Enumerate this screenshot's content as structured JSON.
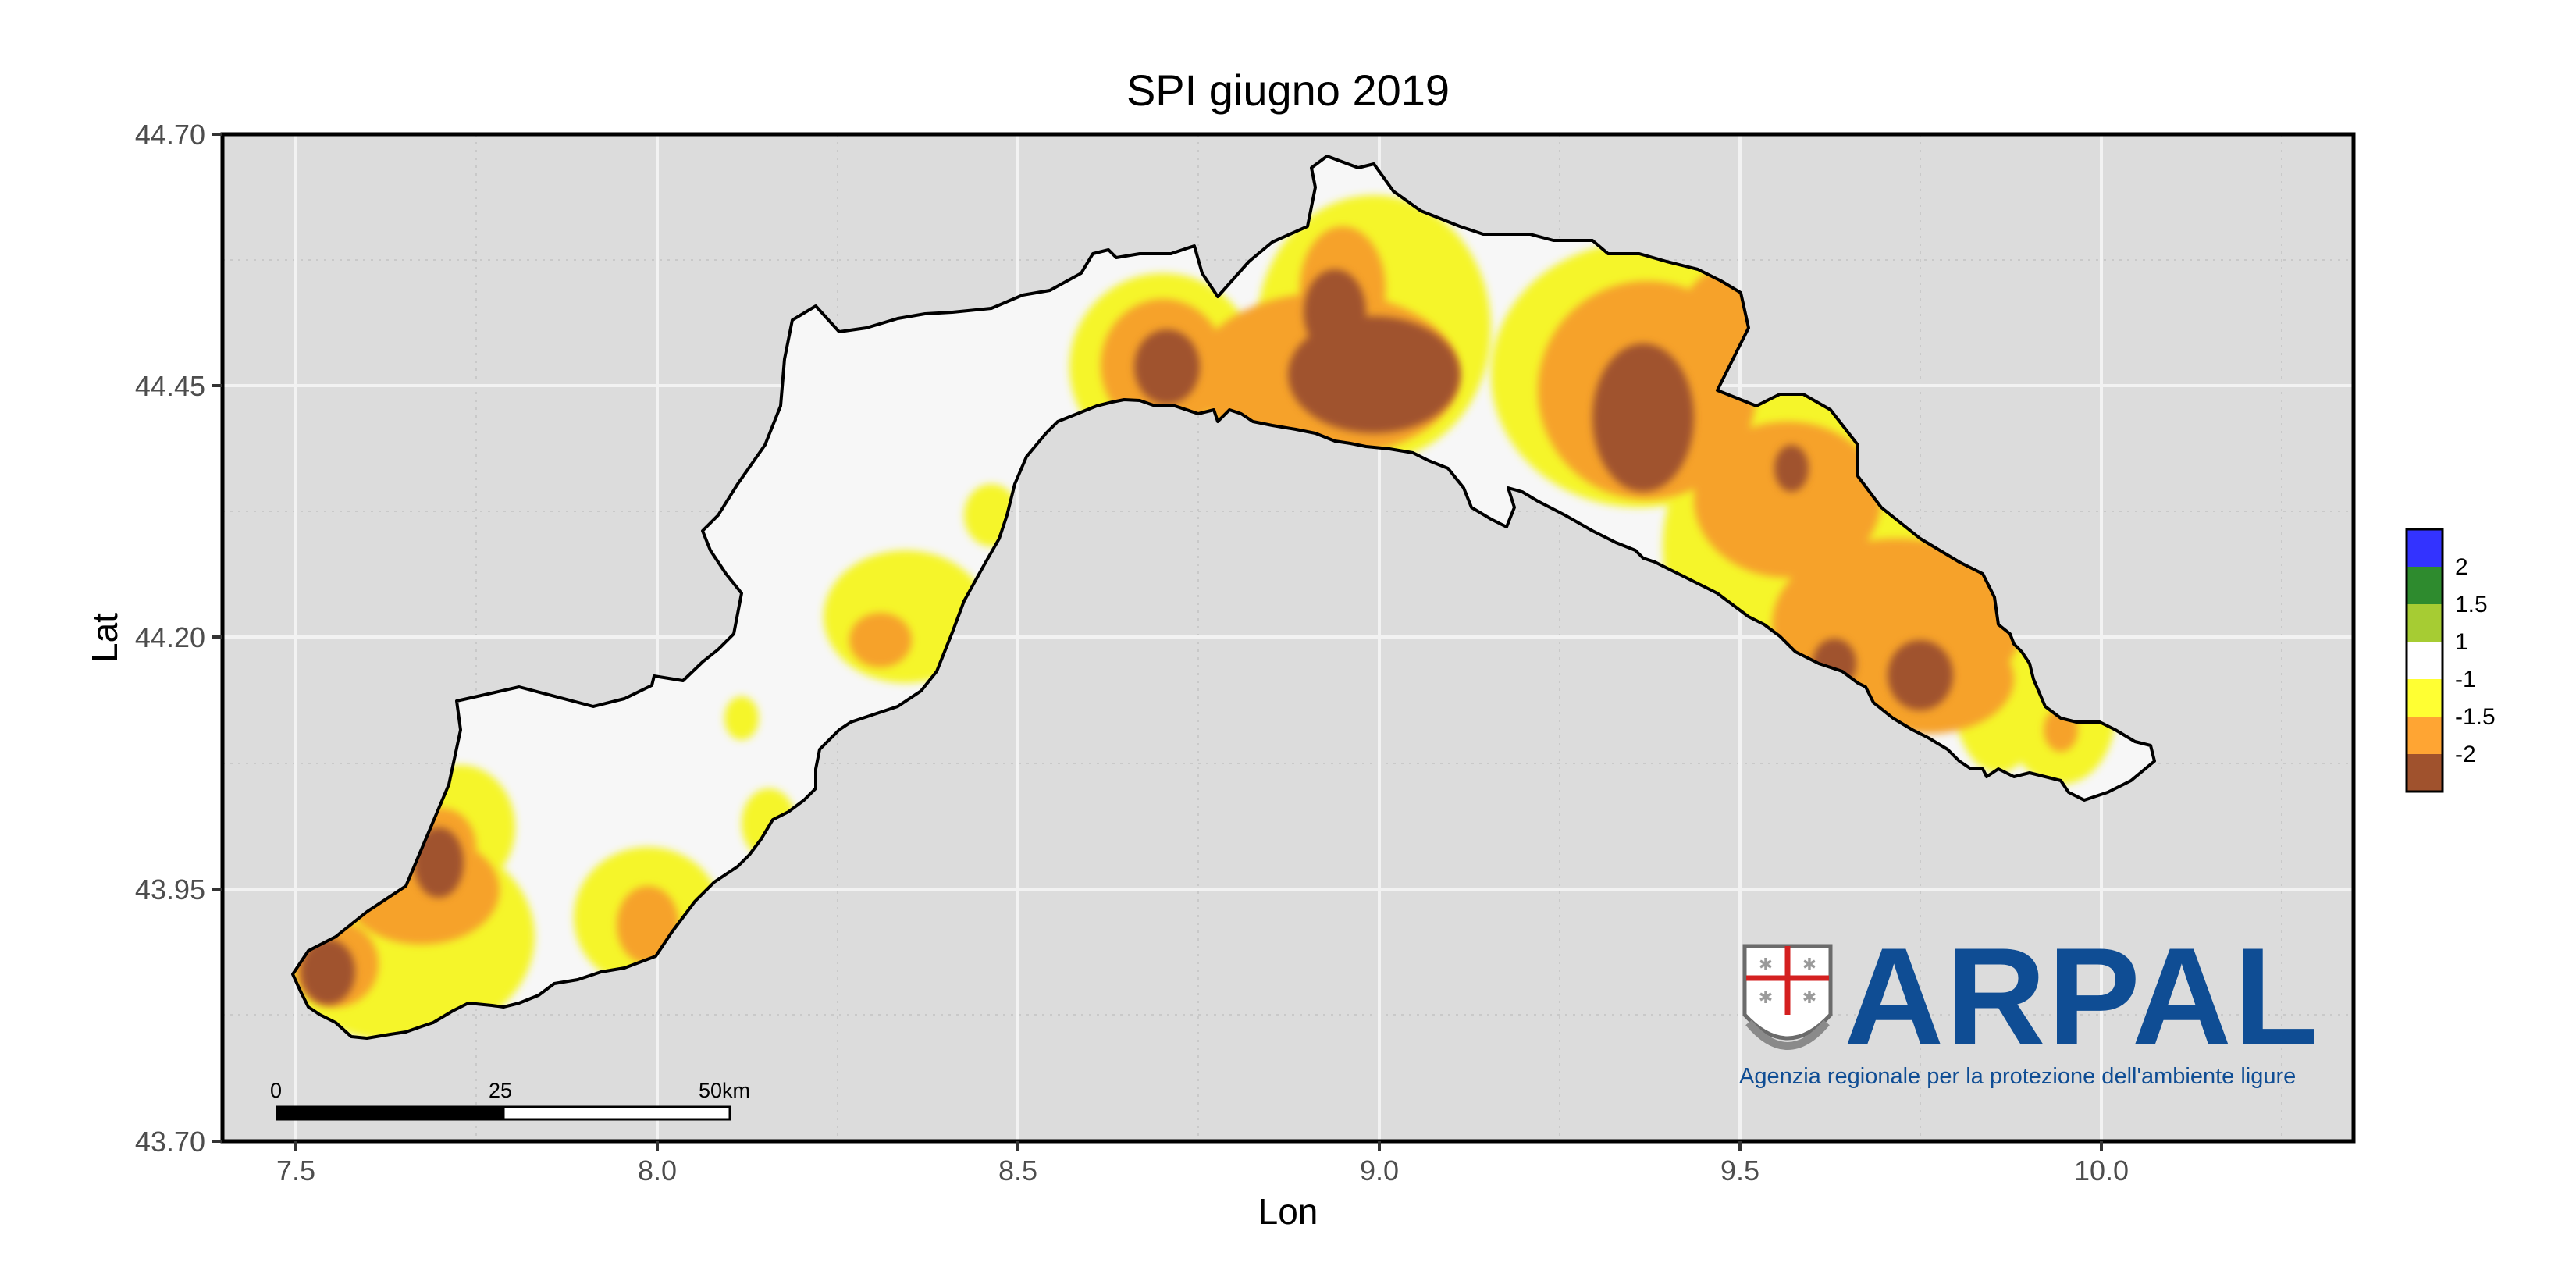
{
  "title": "SPI giugno 2019",
  "xaxis": {
    "label": "Lon",
    "ticks": [
      "7.5",
      "8.0",
      "8.5",
      "9.0",
      "9.5",
      "10.0"
    ]
  },
  "yaxis": {
    "label": "Lat",
    "ticks": [
      "44.70",
      "44.45",
      "44.20",
      "43.95",
      "43.70"
    ]
  },
  "legend": {
    "items": [
      {
        "label": "2",
        "color": "#3333ff"
      },
      {
        "label": "1.5",
        "color": "#2e8b2e"
      },
      {
        "label": "1",
        "color": "#a6cc33"
      },
      {
        "label": "-1",
        "color": "#ffffff"
      },
      {
        "label": "-1.5",
        "color": "#ffff33"
      },
      {
        "label": "-2",
        "color": "#ffa533"
      },
      {
        "label": "",
        "color": "#a0522d"
      }
    ]
  },
  "scalebar": {
    "labels": [
      "0",
      "25",
      "50km"
    ]
  },
  "logo": {
    "name": "ARPAL",
    "subtitle": "Agenzia regionale per la protezione dell'ambiente ligure"
  },
  "colors": {
    "panel": "#dcdcdc",
    "region": "#f7f7f7",
    "outline": "#000000",
    "logo_blue": "#0f4d94",
    "logo_red": "#d42020"
  }
}
